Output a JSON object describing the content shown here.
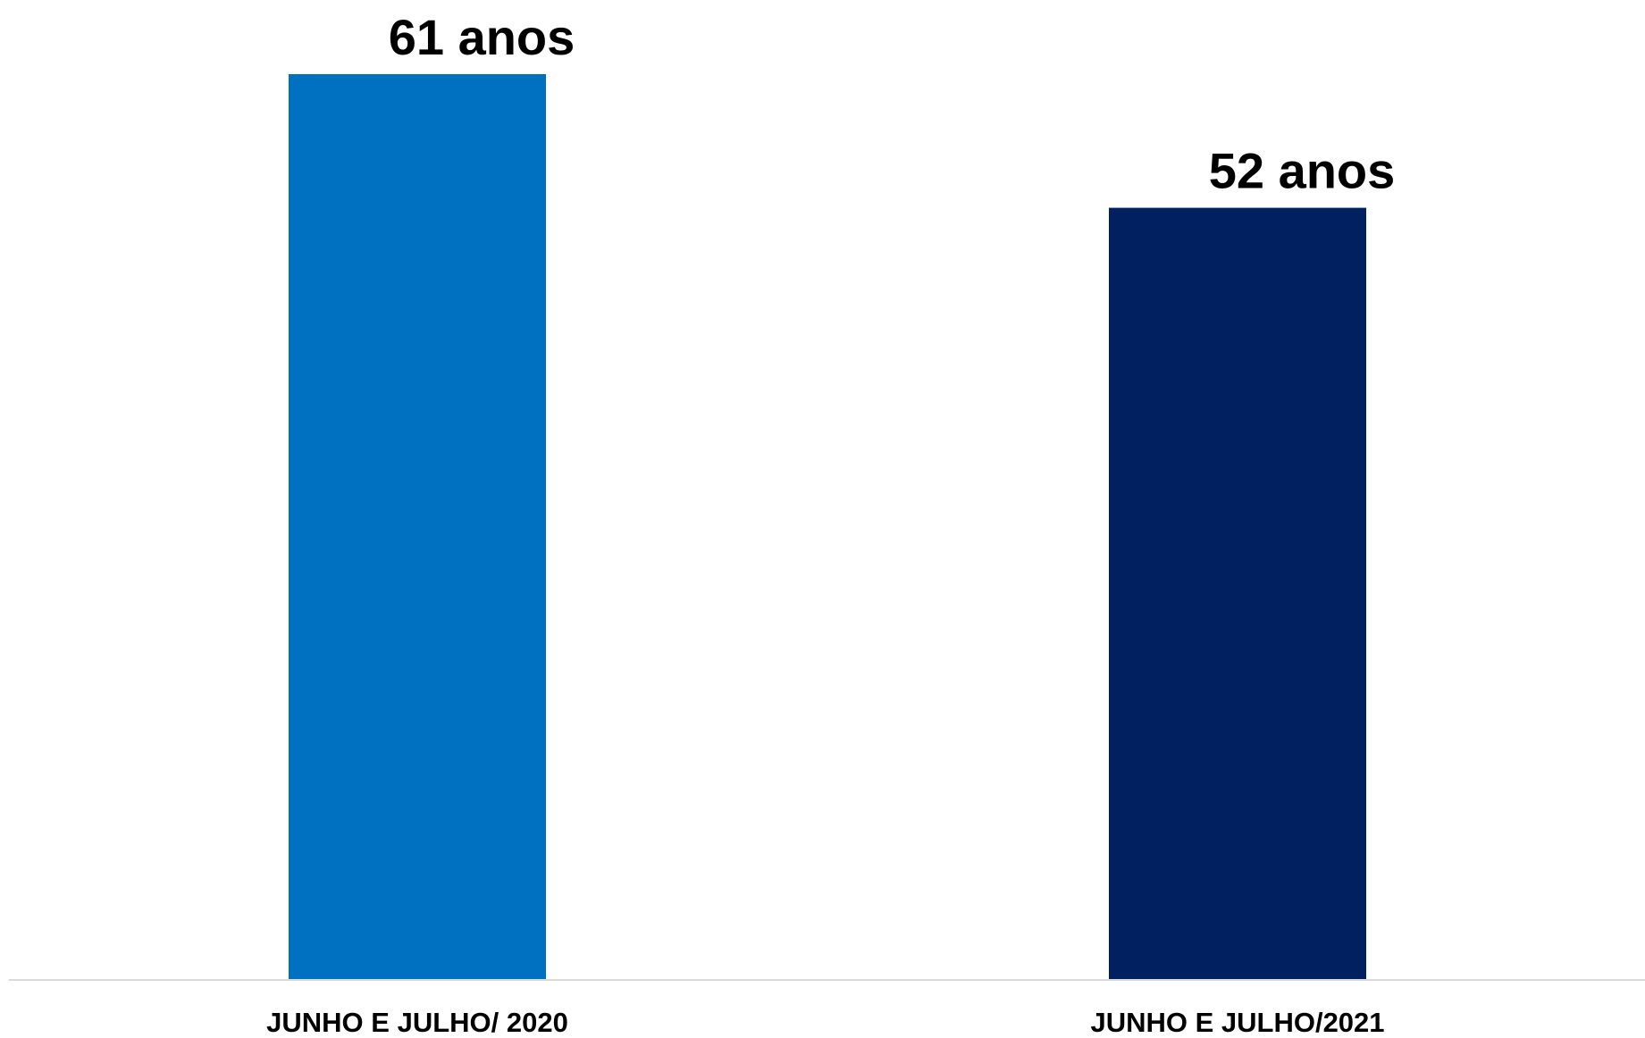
{
  "chart_data": {
    "type": "bar",
    "title": "",
    "xlabel": "",
    "ylabel": "",
    "categories": [
      "JUNHO E JULHO/ 2020",
      "JUNHO E JULHO/2021"
    ],
    "values": [
      61,
      52
    ],
    "data_labels": [
      "61 anos",
      "52 anos"
    ],
    "bar_colors": [
      "#0070C0",
      "#002060"
    ],
    "axis_color": "#D9D9D9",
    "ylim": [
      0,
      66
    ],
    "grid": false,
    "legend": "none"
  }
}
